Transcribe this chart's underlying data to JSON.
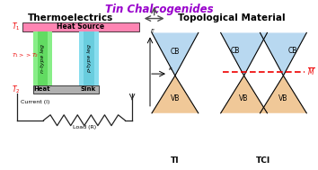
{
  "title": "Tin Chalcogenides",
  "title_color": "#9900CC",
  "left_title": "Thermoelectrics",
  "right_title": "Topological Material",
  "heat_source_color": "#FF85B3",
  "heat_sink_color": "#B0B0B0",
  "n_type_color_light": "#88EE88",
  "n_type_color_dark": "#44CC44",
  "p_type_color_light": "#88DDEE",
  "p_type_color_dark": "#44BBCC",
  "cb_color": "#B8D8F0",
  "vb_color": "#F0C898",
  "M_line_color": "#EE0000",
  "wire_color": "#222222",
  "T1_color": "#EE0000",
  "T2_color": "#EE0000",
  "T1T2_color": "#EE0000",
  "bg_color": "#FFFFFF"
}
